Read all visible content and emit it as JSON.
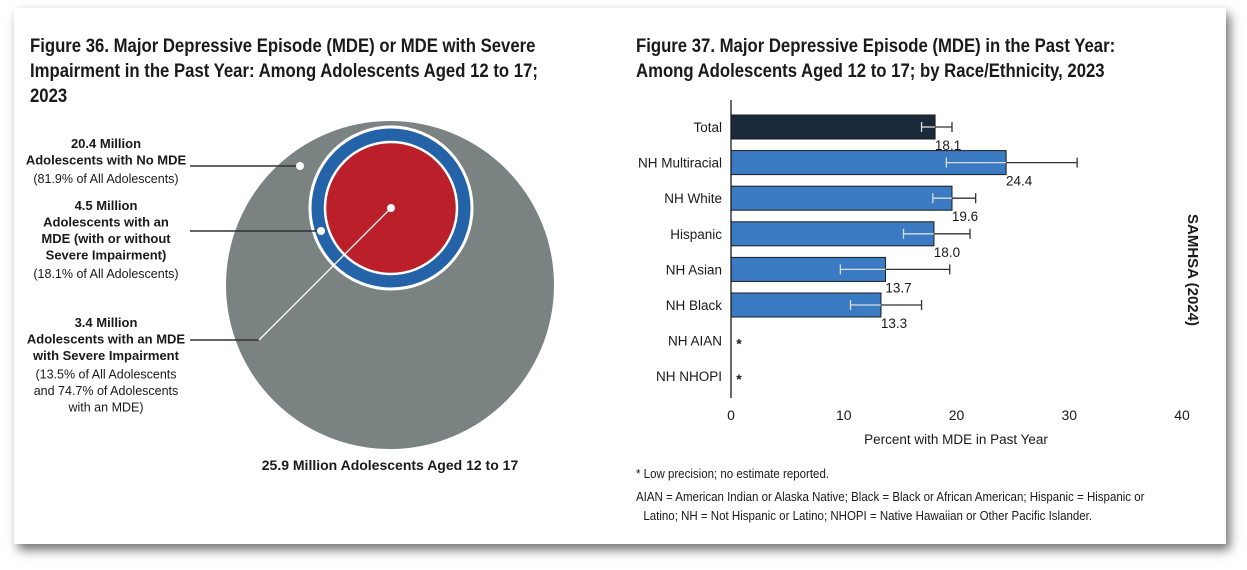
{
  "figure36": {
    "title_lines": [
      "Figure 36. Major Depressive Episode (MDE) or MDE with Severe",
      "Impairment in the Past Year: Among Adolescents Aged 12 to 17;",
      "2023"
    ],
    "total_label": "25.9 Million Adolescents Aged 12 to 17",
    "labels": [
      {
        "bold": [
          "20.4 Million",
          "Adolescents with No MDE"
        ],
        "note": [
          "(81.9% of All Adolescents)"
        ]
      },
      {
        "bold": [
          "4.5 Million",
          "Adolescents with an",
          "MDE (with or without",
          "Severe Impairment)"
        ],
        "note": [
          "(18.1% of All Adolescents)"
        ]
      },
      {
        "bold": [
          "3.4 Million",
          "Adolescents with an MDE",
          "with Severe Impairment"
        ],
        "note": [
          "(13.5% of All Adolescents",
          "and 74.7% of Adolescents",
          "with an MDE)"
        ]
      }
    ],
    "colors": {
      "total": "#7a8381",
      "mde": "#2563a8",
      "severe": "#bb1f2a"
    }
  },
  "chart_data": {
    "type": "bar",
    "orientation": "horizontal",
    "title": "Figure 37. Major Depressive Episode (MDE) in the Past Year: Among Adolescents Aged 12 to 17; by Race/Ethnicity, 2023",
    "title_lines": [
      "Figure 37. Major Depressive Episode (MDE) in the Past Year:",
      "Among Adolescents Aged 12 to 17; by Race/Ethnicity, 2023"
    ],
    "categories": [
      "Total",
      "NH Multiracial",
      "NH White",
      "Hispanic",
      "NH Asian",
      "NH Black",
      "NH AIAN",
      "NH NHOPI"
    ],
    "values": [
      18.1,
      24.4,
      19.6,
      18.0,
      13.7,
      13.3,
      null,
      null
    ],
    "value_labels": [
      "18.1",
      "24.4",
      "19.6",
      "18.0",
      "13.7",
      "13.3",
      "*",
      "*"
    ],
    "ci_low": [
      16.9,
      19.1,
      17.9,
      15.3,
      9.7,
      10.6,
      null,
      null
    ],
    "ci_high": [
      19.6,
      30.7,
      21.7,
      21.2,
      19.4,
      16.9,
      null,
      null
    ],
    "xlabel": "Percent with MDE in Past Year",
    "xlim": [
      0,
      40
    ],
    "xticks": [
      "0",
      "10",
      "20",
      "30",
      "40"
    ],
    "grid": false,
    "colors": {
      "total": "#1b2a3a",
      "groups": "#3a7bc4"
    },
    "footnotes": [
      "* Low precision; no estimate reported.",
      "AIAN = American Indian or Alaska Native; Black = Black or African American; Hispanic = Hispanic or",
      "Latino; NH = Not Hispanic or Latino; NHOPI = Native Hawaiian or Other Pacific Islander."
    ],
    "source": "SAMHSA (2024)"
  }
}
